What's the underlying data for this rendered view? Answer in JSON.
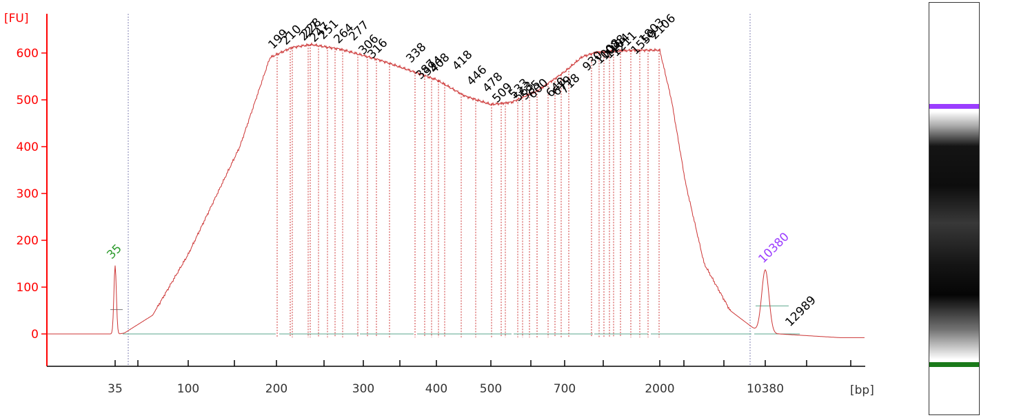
{
  "chart_data": {
    "type": "line",
    "y_unit_label": "[FU]",
    "x_unit_label": "[bp]",
    "ylim": [
      -20,
      680
    ],
    "y_ticks": [
      0,
      100,
      200,
      300,
      400,
      500,
      600
    ],
    "x_ticks": [
      "35",
      "100",
      "200",
      "300",
      "400",
      "500",
      "700",
      "2000",
      "10380"
    ],
    "colors": {
      "axis": "#ff0000",
      "trace": "#cc3333",
      "lower_marker": "#2b9a2b",
      "upper_marker": "#9b3dff",
      "baseline": "#5aa58c",
      "peak_label": "#000000",
      "grid_dotted": "#7f7fb0"
    },
    "lower_marker": {
      "label": "35",
      "bp": "35",
      "height": 146
    },
    "upper_marker": {
      "label": "10380",
      "bp": "10380",
      "height": 137
    },
    "end_marker": {
      "label": "12989"
    },
    "smear_profile": [
      [
        37,
        0
      ],
      [
        40,
        2
      ],
      [
        60,
        40
      ],
      [
        100,
        170
      ],
      [
        150,
        400
      ],
      [
        190,
        590
      ],
      [
        215,
        612
      ],
      [
        235,
        618
      ],
      [
        270,
        608
      ],
      [
        320,
        585
      ],
      [
        400,
        543
      ],
      [
        450,
        508
      ],
      [
        500,
        490
      ],
      [
        550,
        495
      ],
      [
        620,
        520
      ],
      [
        700,
        560
      ],
      [
        850,
        592
      ],
      [
        1000,
        602
      ],
      [
        1500,
        606
      ],
      [
        2000,
        606
      ],
      [
        2400,
        500
      ],
      [
        3000,
        320
      ],
      [
        4000,
        150
      ],
      [
        6000,
        50
      ],
      [
        9000,
        8
      ],
      [
        9800,
        0
      ]
    ],
    "peaks": [
      {
        "label": "199"
      },
      {
        "label": "210"
      },
      {
        "label": "227"
      },
      {
        "label": "228"
      },
      {
        "label": "247"
      },
      {
        "label": "251"
      },
      {
        "label": "264"
      },
      {
        "label": "277"
      },
      {
        "label": "306"
      },
      {
        "label": "316"
      },
      {
        "label": "338"
      },
      {
        "label": "387"
      },
      {
        "label": "394"
      },
      {
        "label": "408"
      },
      {
        "label": "418"
      },
      {
        "label": "446"
      },
      {
        "label": "478"
      },
      {
        "label": "509"
      },
      {
        "label": "533"
      },
      {
        "label": "563"
      },
      {
        "label": "585"
      },
      {
        "label": "600"
      },
      {
        "label": "640"
      },
      {
        "label": "679"
      },
      {
        "label": "718"
      },
      {
        "label": "930"
      },
      {
        "label": "1008"
      },
      {
        "label": "1028"
      },
      {
        "label": "1104"
      },
      {
        "label": "1211"
      },
      {
        "label": "1550"
      },
      {
        "label": "1803"
      },
      {
        "label": "2106"
      }
    ],
    "grid": false,
    "legend": "none"
  },
  "gel": {
    "upper_band_color": "#9b3dff",
    "lower_band_color": "#1a7a1a",
    "smear_color": "#000000"
  }
}
